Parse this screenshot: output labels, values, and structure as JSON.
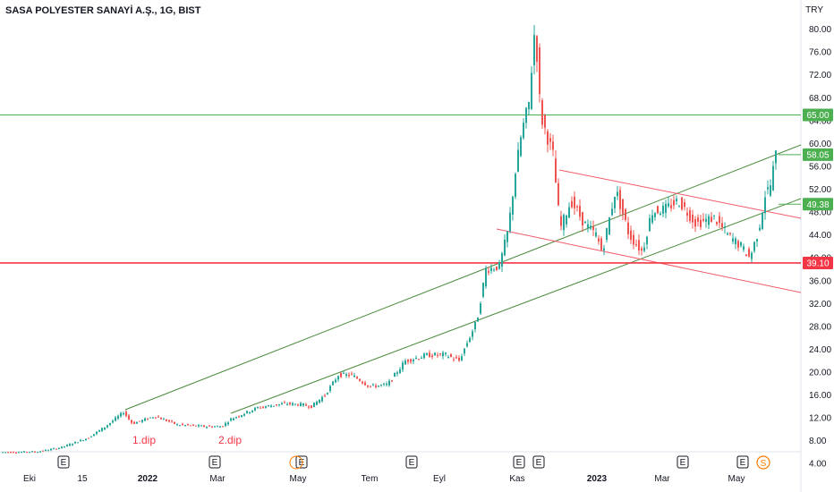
{
  "header": {
    "title": "SASA POLYESTER SANAYİ A.Ş., 1G, BIST"
  },
  "axis": {
    "currency": "TRY"
  },
  "chart_data": {
    "type": "candlestick",
    "title": "SASA POLYESTER SANAYİ A.Ş., 1G, BIST",
    "y_ticks": [
      4,
      8,
      12,
      16,
      20,
      24,
      28,
      32,
      36,
      40,
      44,
      48,
      52,
      56,
      60,
      64,
      68,
      72,
      76,
      80
    ],
    "y_tick_labels": [
      "4.00",
      "8.00",
      "12.00",
      "16.00",
      "20.00",
      "24.00",
      "28.00",
      "32.00",
      "36.00",
      "40.00",
      "44.00",
      "48.00",
      "52.00",
      "56.00",
      "60.00",
      "64.00",
      "68.00",
      "72.00",
      "76.00",
      "80.00"
    ],
    "ylim": [
      3.5,
      84
    ],
    "x_ticks": [
      "Eki",
      "15",
      "2022",
      "Mar",
      "May",
      "Tem",
      "Eyl",
      "Kas",
      "2023",
      "Mar",
      "May"
    ],
    "bold_x_ticks": [
      "2022",
      "2023"
    ],
    "price_path": [
      [
        0,
        6.0
      ],
      [
        20,
        6.0
      ],
      [
        45,
        6.1
      ],
      [
        70,
        6.8
      ],
      [
        100,
        8.5
      ],
      [
        120,
        10.5
      ],
      [
        140,
        13.0
      ],
      [
        150,
        11.0
      ],
      [
        175,
        12.3
      ],
      [
        200,
        10.8
      ],
      [
        230,
        10.5
      ],
      [
        250,
        10.5
      ],
      [
        260,
        11.8
      ],
      [
        290,
        13.8
      ],
      [
        320,
        14.5
      ],
      [
        340,
        14.3
      ],
      [
        350,
        14.0
      ],
      [
        365,
        16.0
      ],
      [
        380,
        19.5
      ],
      [
        395,
        19.5
      ],
      [
        415,
        17.5
      ],
      [
        435,
        17.8
      ],
      [
        455,
        22.0
      ],
      [
        480,
        23.0
      ],
      [
        500,
        23.0
      ],
      [
        515,
        22.0
      ],
      [
        525,
        25.5
      ],
      [
        535,
        29.0
      ],
      [
        545,
        38.0
      ],
      [
        560,
        38.5
      ],
      [
        570,
        45.0
      ],
      [
        578,
        55.0
      ],
      [
        585,
        62.0
      ],
      [
        593,
        67.0
      ],
      [
        600,
        81.0
      ],
      [
        606,
        65.0
      ],
      [
        612,
        62.0
      ],
      [
        620,
        58.0
      ],
      [
        628,
        45.0
      ],
      [
        640,
        50.0
      ],
      [
        655,
        46.0
      ],
      [
        668,
        44.0
      ],
      [
        675,
        41.0
      ],
      [
        690,
        52.0
      ],
      [
        705,
        44.0
      ],
      [
        720,
        41.0
      ],
      [
        730,
        48.0
      ],
      [
        745,
        48.5
      ],
      [
        760,
        50.0
      ],
      [
        780,
        46.0
      ],
      [
        800,
        47.0
      ],
      [
        815,
        44.0
      ],
      [
        830,
        42.0
      ],
      [
        840,
        40.0
      ],
      [
        850,
        45.0
      ],
      [
        857,
        51.0
      ],
      [
        864,
        53.0
      ],
      [
        868,
        58.0
      ]
    ],
    "horizontal_levels": [
      {
        "value": 65.0,
        "label": "65.00",
        "color": "#4caf50"
      },
      {
        "value": 39.1,
        "label": "39.10",
        "color": "#f23645"
      }
    ],
    "price_labels": [
      {
        "value": 58.05,
        "label": "58.05",
        "color": "#4caf50"
      },
      {
        "value": 49.38,
        "label": "49.38",
        "color": "#4caf50"
      }
    ],
    "annotations": [
      {
        "text": "1.dip",
        "color": "#f23645"
      },
      {
        "text": "2.dip",
        "color": "#f23645"
      }
    ],
    "event_markers": [
      "E",
      "E",
      "E",
      "E",
      "E",
      "E",
      "E",
      "E",
      "E",
      "S"
    ],
    "colors": {
      "up": "#26a69a",
      "down": "#ef5350",
      "channel_green": "#4a8a3a",
      "channel_red": "#f05a6a"
    }
  }
}
